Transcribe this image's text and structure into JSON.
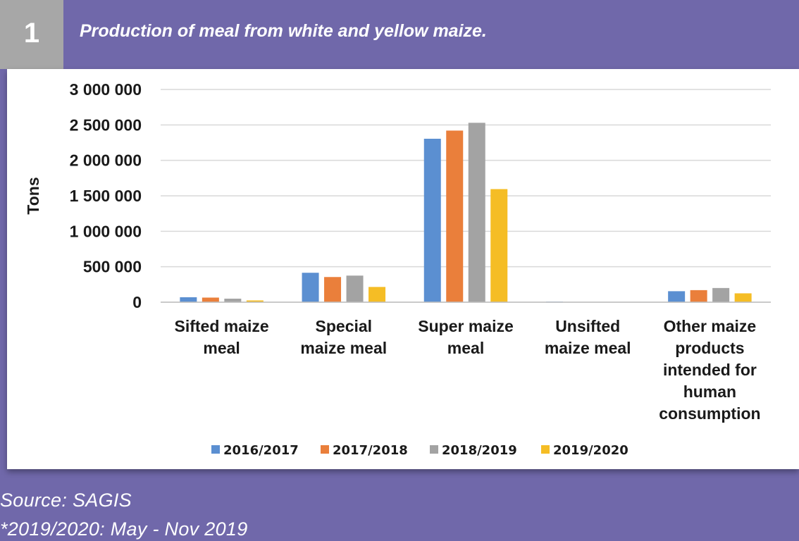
{
  "header": {
    "number": "1",
    "title": "Production of meal from white and yellow maize."
  },
  "footer": {
    "source": "Source: SAGIS",
    "note": "*2019/2020: May - Nov 2019"
  },
  "colors": {
    "background": "#7068aa",
    "number_box": "#a7a7a7",
    "series": [
      "#5b8fd1",
      "#ea7f3b",
      "#a3a3a3",
      "#f5bd25"
    ]
  },
  "chart_data": {
    "type": "bar",
    "title": "",
    "xlabel": "",
    "ylabel": "Tons",
    "ylim": [
      0,
      3000000
    ],
    "yticks": [
      0,
      500000,
      1000000,
      1500000,
      2000000,
      2500000,
      3000000
    ],
    "ytick_labels": [
      "0",
      "500 000",
      "1 000 000",
      "1 500 000",
      "2 000 000",
      "2 500 000",
      "3 000 000"
    ],
    "grid": true,
    "legend_position": "bottom",
    "categories": [
      [
        "Sifted maize",
        "meal"
      ],
      [
        "Special",
        "maize meal"
      ],
      [
        "Super maize",
        "meal"
      ],
      [
        "Unsifted",
        "maize meal"
      ],
      [
        "Other maize",
        "products",
        "intended for",
        "human",
        "consumption"
      ]
    ],
    "series": [
      {
        "name": "2016/2017",
        "values": [
          70000,
          415000,
          2305000,
          8000,
          155000
        ]
      },
      {
        "name": "2017/2018",
        "values": [
          65000,
          355000,
          2420000,
          2000,
          170000
        ]
      },
      {
        "name": "2018/2019",
        "values": [
          50000,
          375000,
          2530000,
          2000,
          200000
        ]
      },
      {
        "name": "2019/2020",
        "values": [
          25000,
          215000,
          1595000,
          1000,
          125000
        ]
      }
    ]
  }
}
